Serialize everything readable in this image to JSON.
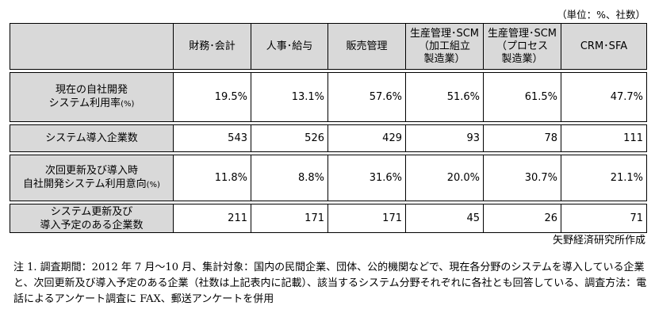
{
  "unit_note": "（単位：%、社数）",
  "table": {
    "headers": [
      [
        "財務･会計"
      ],
      [
        "人事･給与"
      ],
      [
        "販売管理"
      ],
      [
        "生産管理･SCM",
        "（加工組立",
        "製造業）"
      ],
      [
        "生産管理･SCM",
        "（プロセス",
        "製造業）"
      ],
      [
        "CRM･SFA"
      ]
    ],
    "rows": [
      {
        "label": [
          "現在の自社開発",
          "システム利用率"
        ],
        "label_suffix": "(%)",
        "values": [
          "19.5%",
          "13.1%",
          "57.6%",
          "51.6%",
          "61.5%",
          "47.7%"
        ]
      },
      {
        "label": [
          "システム導入企業数"
        ],
        "label_suffix": "",
        "values": [
          "543",
          "526",
          "429",
          "93",
          "78",
          "111"
        ]
      },
      {
        "label": [
          "次回更新及び導入時",
          "自社開発システム利用意向"
        ],
        "label_suffix": "(%)",
        "values": [
          "11.8%",
          "8.8%",
          "31.6%",
          "20.0%",
          "30.7%",
          "21.1%"
        ]
      },
      {
        "label": [
          "システム更新及び",
          "導入予定のある企業数"
        ],
        "label_suffix": "",
        "values": [
          "211",
          "171",
          "171",
          "45",
          "26",
          "71"
        ]
      }
    ]
  },
  "source": "矢野経済研究所作成",
  "note": "注 1. 調査期間：2012 年 7 月～10 月、集計対象：国内の民間企業、団体、公的機関などで、現在各分野のシステムを導入している企業と、次回更新及び導入予定のある企業（社数は上記表内に記載）、該当するシステム分野それぞれに各社とも回答している、調査方法：電話によるアンケート調査に FAX、郵送アンケートを併用"
}
